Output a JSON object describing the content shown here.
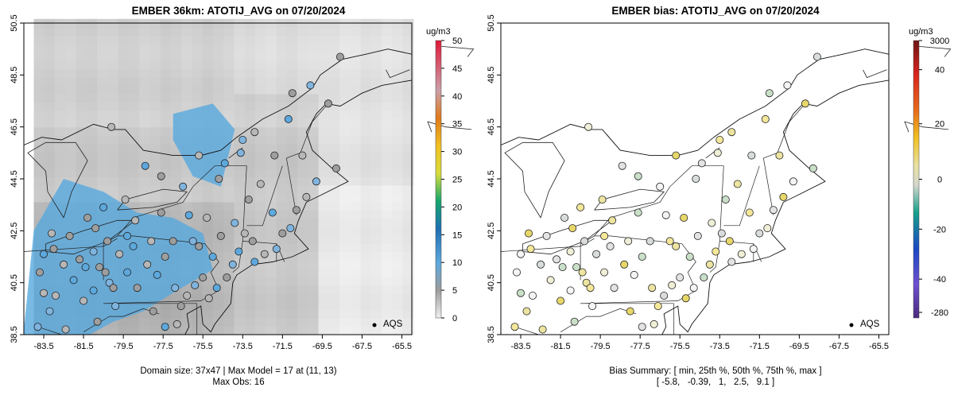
{
  "chart_data": [
    {
      "type": "map",
      "title": "EMBER 36km: ATOTIJ_AVG on 07/20/2024",
      "xlabel": "",
      "ylabel": "",
      "x_ticks": [
        "-83.5",
        "-81.5",
        "-79.5",
        "-77.5",
        "-75.5",
        "-73.5",
        "-71.5",
        "-69.5",
        "-67.5",
        "-65.5"
      ],
      "y_ticks": [
        "38.5",
        "40.5",
        "42.5",
        "44.5",
        "46.5",
        "48.5",
        "50.5"
      ],
      "xlim": [
        -84.5,
        -65.0
      ],
      "ylim": [
        38.5,
        50.5
      ],
      "colorbar": {
        "label": "ug/m3",
        "ticks": [
          "0",
          "5",
          "10",
          "15",
          "20",
          "25",
          "30",
          "35",
          "40",
          "45",
          "50"
        ],
        "range": [
          0,
          50
        ]
      },
      "legend": "AQS",
      "footer_lines": [
        "Domain size: 37x47 | Max Model = 17 at (11, 13)",
        "Max Obs: 16"
      ]
    },
    {
      "type": "map",
      "title": "EMBER bias: ATOTIJ_AVG on 07/20/2024",
      "xlabel": "",
      "ylabel": "",
      "x_ticks": [
        "-83.5",
        "-81.5",
        "-79.5",
        "-77.5",
        "-75.5",
        "-73.5",
        "-71.5",
        "-69.5",
        "-67.5",
        "-65.5"
      ],
      "y_ticks": [
        "38.5",
        "40.5",
        "42.5",
        "44.5",
        "46.5",
        "48.5",
        "50.5"
      ],
      "xlim": [
        -84.5,
        -65.0
      ],
      "ylim": [
        38.5,
        50.5
      ],
      "colorbar": {
        "label": "ug/m3",
        "ticks": [
          "3000",
          "40",
          "20",
          "0",
          "-20",
          "-40",
          "-280"
        ]
      },
      "legend": "AQS",
      "footer_lines": [
        "Bias Summary: [ min, 25th %, 50th %, 75th %, max ]",
        "[ -5.8,   -0.39,   1,   2.5,   9.1 ]"
      ],
      "bias_summary": {
        "min": -5.8,
        "p25": -0.39,
        "p50": 1,
        "p75": 2.5,
        "max": 9.1
      }
    }
  ]
}
